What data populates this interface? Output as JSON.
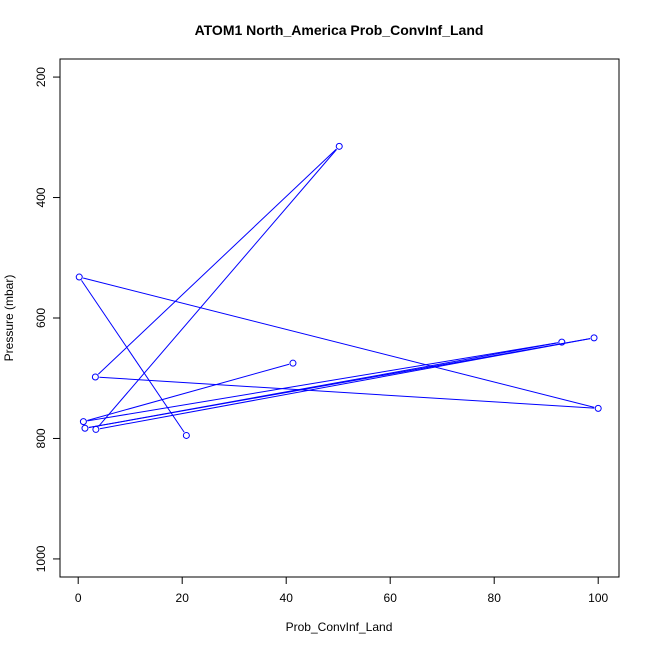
{
  "chart_data": {
    "type": "line",
    "title": "ATOM1 North_America Prob_ConvInf_Land",
    "xlabel": "Prob_ConvInf_Land",
    "ylabel": "Pressure (mbar)",
    "xlim": [
      -3.5,
      104
    ],
    "ylim": [
      1030,
      170
    ],
    "y_reversed": true,
    "grid": false,
    "xticks": [
      0,
      20,
      40,
      60,
      80,
      100
    ],
    "yticks": [
      200,
      400,
      600,
      800,
      1000
    ],
    "color": "#0000ff",
    "marker": "open-circle",
    "series": [
      {
        "x": [
          41.3,
          1.0,
          93.0,
          1.3,
          99.2,
          3.4,
          50.2,
          3.3,
          100.0,
          0.2,
          20.8
        ],
        "y": [
          675,
          772,
          640,
          783,
          633,
          785,
          315,
          698,
          750,
          532,
          795
        ]
      }
    ]
  }
}
